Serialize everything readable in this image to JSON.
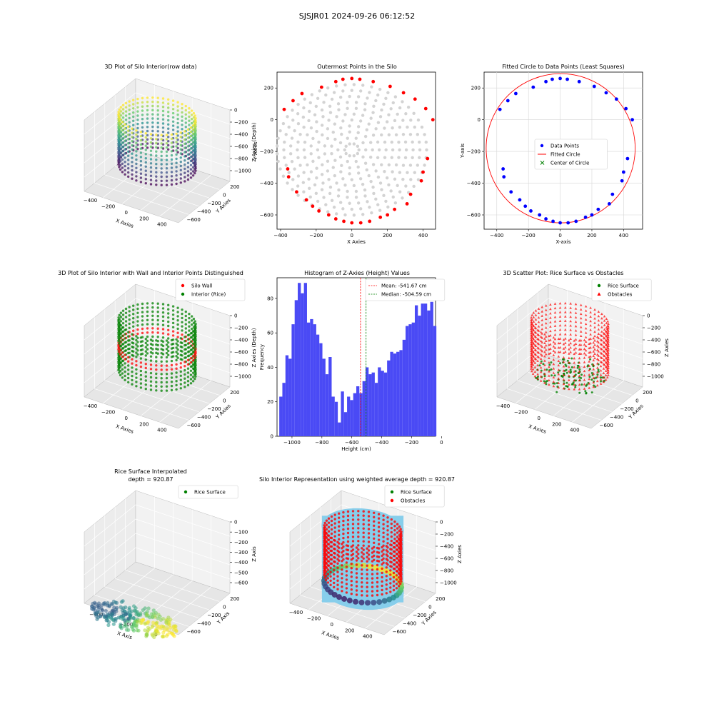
{
  "figure": {
    "suptitle": "SJSJR01 2024-09-26 06:12:52"
  },
  "colors": {
    "viridis": [
      "#440154",
      "#3b528b",
      "#21908d",
      "#5dc963",
      "#fde725"
    ],
    "gray": "#d3d3d3",
    "red": "#ff0000",
    "green": "#008000",
    "blue": "#0000ff",
    "hist": "#4a4af5",
    "wall": "#87ceeb"
  },
  "chart_data": [
    {
      "id": "p1",
      "type": "scatter",
      "title": "3D Plot of Silo Interior(row data)",
      "xlabel": "X Axies",
      "ylabel": "Y Axies",
      "zlabel": "Z Axies (Depth)",
      "x_ticks": [
        "−400",
        "−200",
        "0",
        "200",
        "400"
      ],
      "y_ticks": [
        "200",
        "0",
        "−200",
        "−400",
        "−600"
      ],
      "z_ticks": [
        "0",
        "−200",
        "−400",
        "−600",
        "−800",
        "−1000"
      ],
      "xlim": [
        -400,
        450
      ],
      "ylim": [
        -650,
        270
      ],
      "zlim": [
        -1080,
        0
      ],
      "colormap": "viridis"
    },
    {
      "id": "p2",
      "type": "scatter",
      "title": "Outermost Points in the Silo",
      "xlabel": "X Axies",
      "ylabel": "Y Axies",
      "xlim": [
        -420,
        470
      ],
      "ylim": [
        -690,
        300
      ],
      "x_ticks": [
        -400,
        -200,
        0,
        200,
        400
      ],
      "y_ticks": [
        200,
        0,
        -200,
        -400,
        -600
      ],
      "x_tick_labels": [
        "−400",
        "−200",
        "0",
        "200",
        "400"
      ],
      "y_tick_labels": [
        "200",
        "0",
        "−200",
        "−400",
        "−600"
      ],
      "center": [
        0,
        -190
      ],
      "radius": 455,
      "outer_points": [
        [
          -380,
          65
        ],
        [
          -360,
          -310
        ],
        [
          -355,
          -360
        ],
        [
          -330,
          120
        ],
        [
          -310,
          -455
        ],
        [
          -280,
          165
        ],
        [
          -255,
          -505
        ],
        [
          -220,
          -545
        ],
        [
          -185,
          -575
        ],
        [
          -170,
          205
        ],
        [
          -130,
          -600
        ],
        [
          -90,
          -625
        ],
        [
          -90,
          240
        ],
        [
          -50,
          255
        ],
        [
          -45,
          -640
        ],
        [
          0,
          260
        ],
        [
          0,
          -650
        ],
        [
          45,
          255
        ],
        [
          50,
          -650
        ],
        [
          100,
          -640
        ],
        [
          120,
          240
        ],
        [
          160,
          -615
        ],
        [
          200,
          -600
        ],
        [
          215,
          210
        ],
        [
          240,
          -565
        ],
        [
          290,
          170
        ],
        [
          310,
          -530
        ],
        [
          330,
          -470
        ],
        [
          355,
          130
        ],
        [
          390,
          -385
        ],
        [
          400,
          -330
        ],
        [
          415,
          70
        ],
        [
          425,
          -245
        ],
        [
          455,
          0
        ]
      ]
    },
    {
      "id": "p3",
      "type": "scatter",
      "title": "Fitted Circle to Data Points (Least Squares)",
      "xlabel": "X-axis",
      "ylabel": "Y-axis",
      "xlim": [
        -480,
        520
      ],
      "ylim": [
        -690,
        300
      ],
      "x_ticks": [
        -400,
        -200,
        0,
        200,
        400
      ],
      "y_ticks": [
        200,
        0,
        -200,
        -400,
        -600
      ],
      "x_tick_labels": [
        "−400",
        "−200",
        "0",
        "200",
        "400"
      ],
      "y_tick_labels": [
        "200",
        "0",
        "−200",
        "−400",
        "−600"
      ],
      "grid": true,
      "legend_position": "center",
      "legend": [
        "Data Points",
        "Fitted Circle",
        "Center of Circle"
      ],
      "circle_center": [
        3,
        -180
      ],
      "circle_radius": 470
    },
    {
      "id": "p4",
      "type": "scatter",
      "title": "3D Plot of Silo Interior with Wall and Interior Points Distinguished",
      "xlabel": "X Axies",
      "ylabel": "Y Axies",
      "zlabel": "Z Axies (Depth)",
      "x_ticks": [
        "−400",
        "−200",
        "0",
        "200",
        "400"
      ],
      "y_ticks": [
        "200",
        "0",
        "−200",
        "−400",
        "−600"
      ],
      "z_ticks": [
        "0",
        "−200",
        "−400",
        "−600",
        "−800",
        "−1000"
      ],
      "legend": [
        "Silo Wall",
        "Interior (Rice)"
      ],
      "legend_position": "top-right"
    },
    {
      "id": "p5",
      "type": "bar",
      "title": "Histogram of Z-Axies (Height) Values",
      "xlabel": "Height (cm)",
      "ylabel": "Frequency",
      "xlim": [
        -1100,
        -40
      ],
      "ylim": [
        0,
        92
      ],
      "x_ticks": [
        -1000,
        -800,
        -600,
        -400,
        -200,
        0
      ],
      "y_ticks": [
        0,
        20,
        40,
        60,
        80
      ],
      "x_tick_labels": [
        "−1000",
        "−800",
        "−600",
        "−400",
        "−200",
        "0"
      ],
      "y_tick_labels": [
        "0",
        "20",
        "40",
        "60",
        "80"
      ],
      "bin_start": -1085,
      "bin_width": 20.6,
      "values": [
        23,
        31,
        47,
        45,
        65,
        79,
        89,
        83,
        89,
        66,
        68,
        65,
        59,
        54,
        45,
        36,
        46,
        23,
        20,
        8,
        26,
        14,
        23,
        21,
        25,
        29,
        25,
        32,
        40,
        36,
        37,
        31,
        40,
        38,
        37,
        44,
        49,
        48,
        49,
        50,
        56,
        64,
        65,
        66,
        76,
        70,
        77,
        77,
        73,
        78,
        64
      ],
      "mean": -541.67,
      "median": -504.59,
      "legend": [
        "Mean: -541.67 cm",
        "Median: -504.59 cm"
      ],
      "legend_position": "top-right"
    },
    {
      "id": "p6",
      "type": "scatter",
      "title": "3D Scatter Plot: Rice Surface vs Obstacles",
      "xlabel": "X Axies",
      "ylabel": "Y Axies",
      "zlabel": "Z Axies",
      "x_ticks": [
        "−400",
        "−200",
        "0",
        "200",
        "400"
      ],
      "y_ticks": [
        "200",
        "0",
        "−200",
        "−400",
        "−600"
      ],
      "z_ticks": [
        "0",
        "−200",
        "−400",
        "−600",
        "−800",
        "−1000"
      ],
      "legend": [
        "Rice Surface",
        "Obstacles"
      ],
      "legend_position": "top-right"
    },
    {
      "id": "p7",
      "type": "area",
      "title": "Rice Surface Interpolated",
      "subtitle": "depth = 920.87",
      "xlabel": "X Axis",
      "ylabel": "Y Axis",
      "zlabel": "Z Axis",
      "x_ticks": [
        "−400",
        "−200",
        "0"
      ],
      "y_ticks": [
        "200",
        "0",
        "−200",
        "−400",
        "−600"
      ],
      "z_ticks": [
        "0",
        "−100",
        "−200",
        "−300",
        "−400",
        "−500",
        "−600"
      ],
      "legend": [
        "Rice Surface"
      ],
      "legend_position": "top-right"
    },
    {
      "id": "p8",
      "type": "scatter",
      "title": "Silo Interior Representation using weighted average depth = 920.87",
      "xlabel": "X Axies",
      "ylabel": "Y Axies",
      "zlabel": "Z Axies",
      "x_ticks": [
        "−400",
        "−200",
        "0",
        "200",
        "400"
      ],
      "y_ticks": [
        "200",
        "0",
        "−200",
        "−400",
        "−600"
      ],
      "z_ticks": [
        "0",
        "−200",
        "−400",
        "−600",
        "−800",
        "−1000"
      ],
      "legend": [
        "Rice Surface",
        "Obstacles"
      ],
      "legend_position": "top-left"
    }
  ]
}
